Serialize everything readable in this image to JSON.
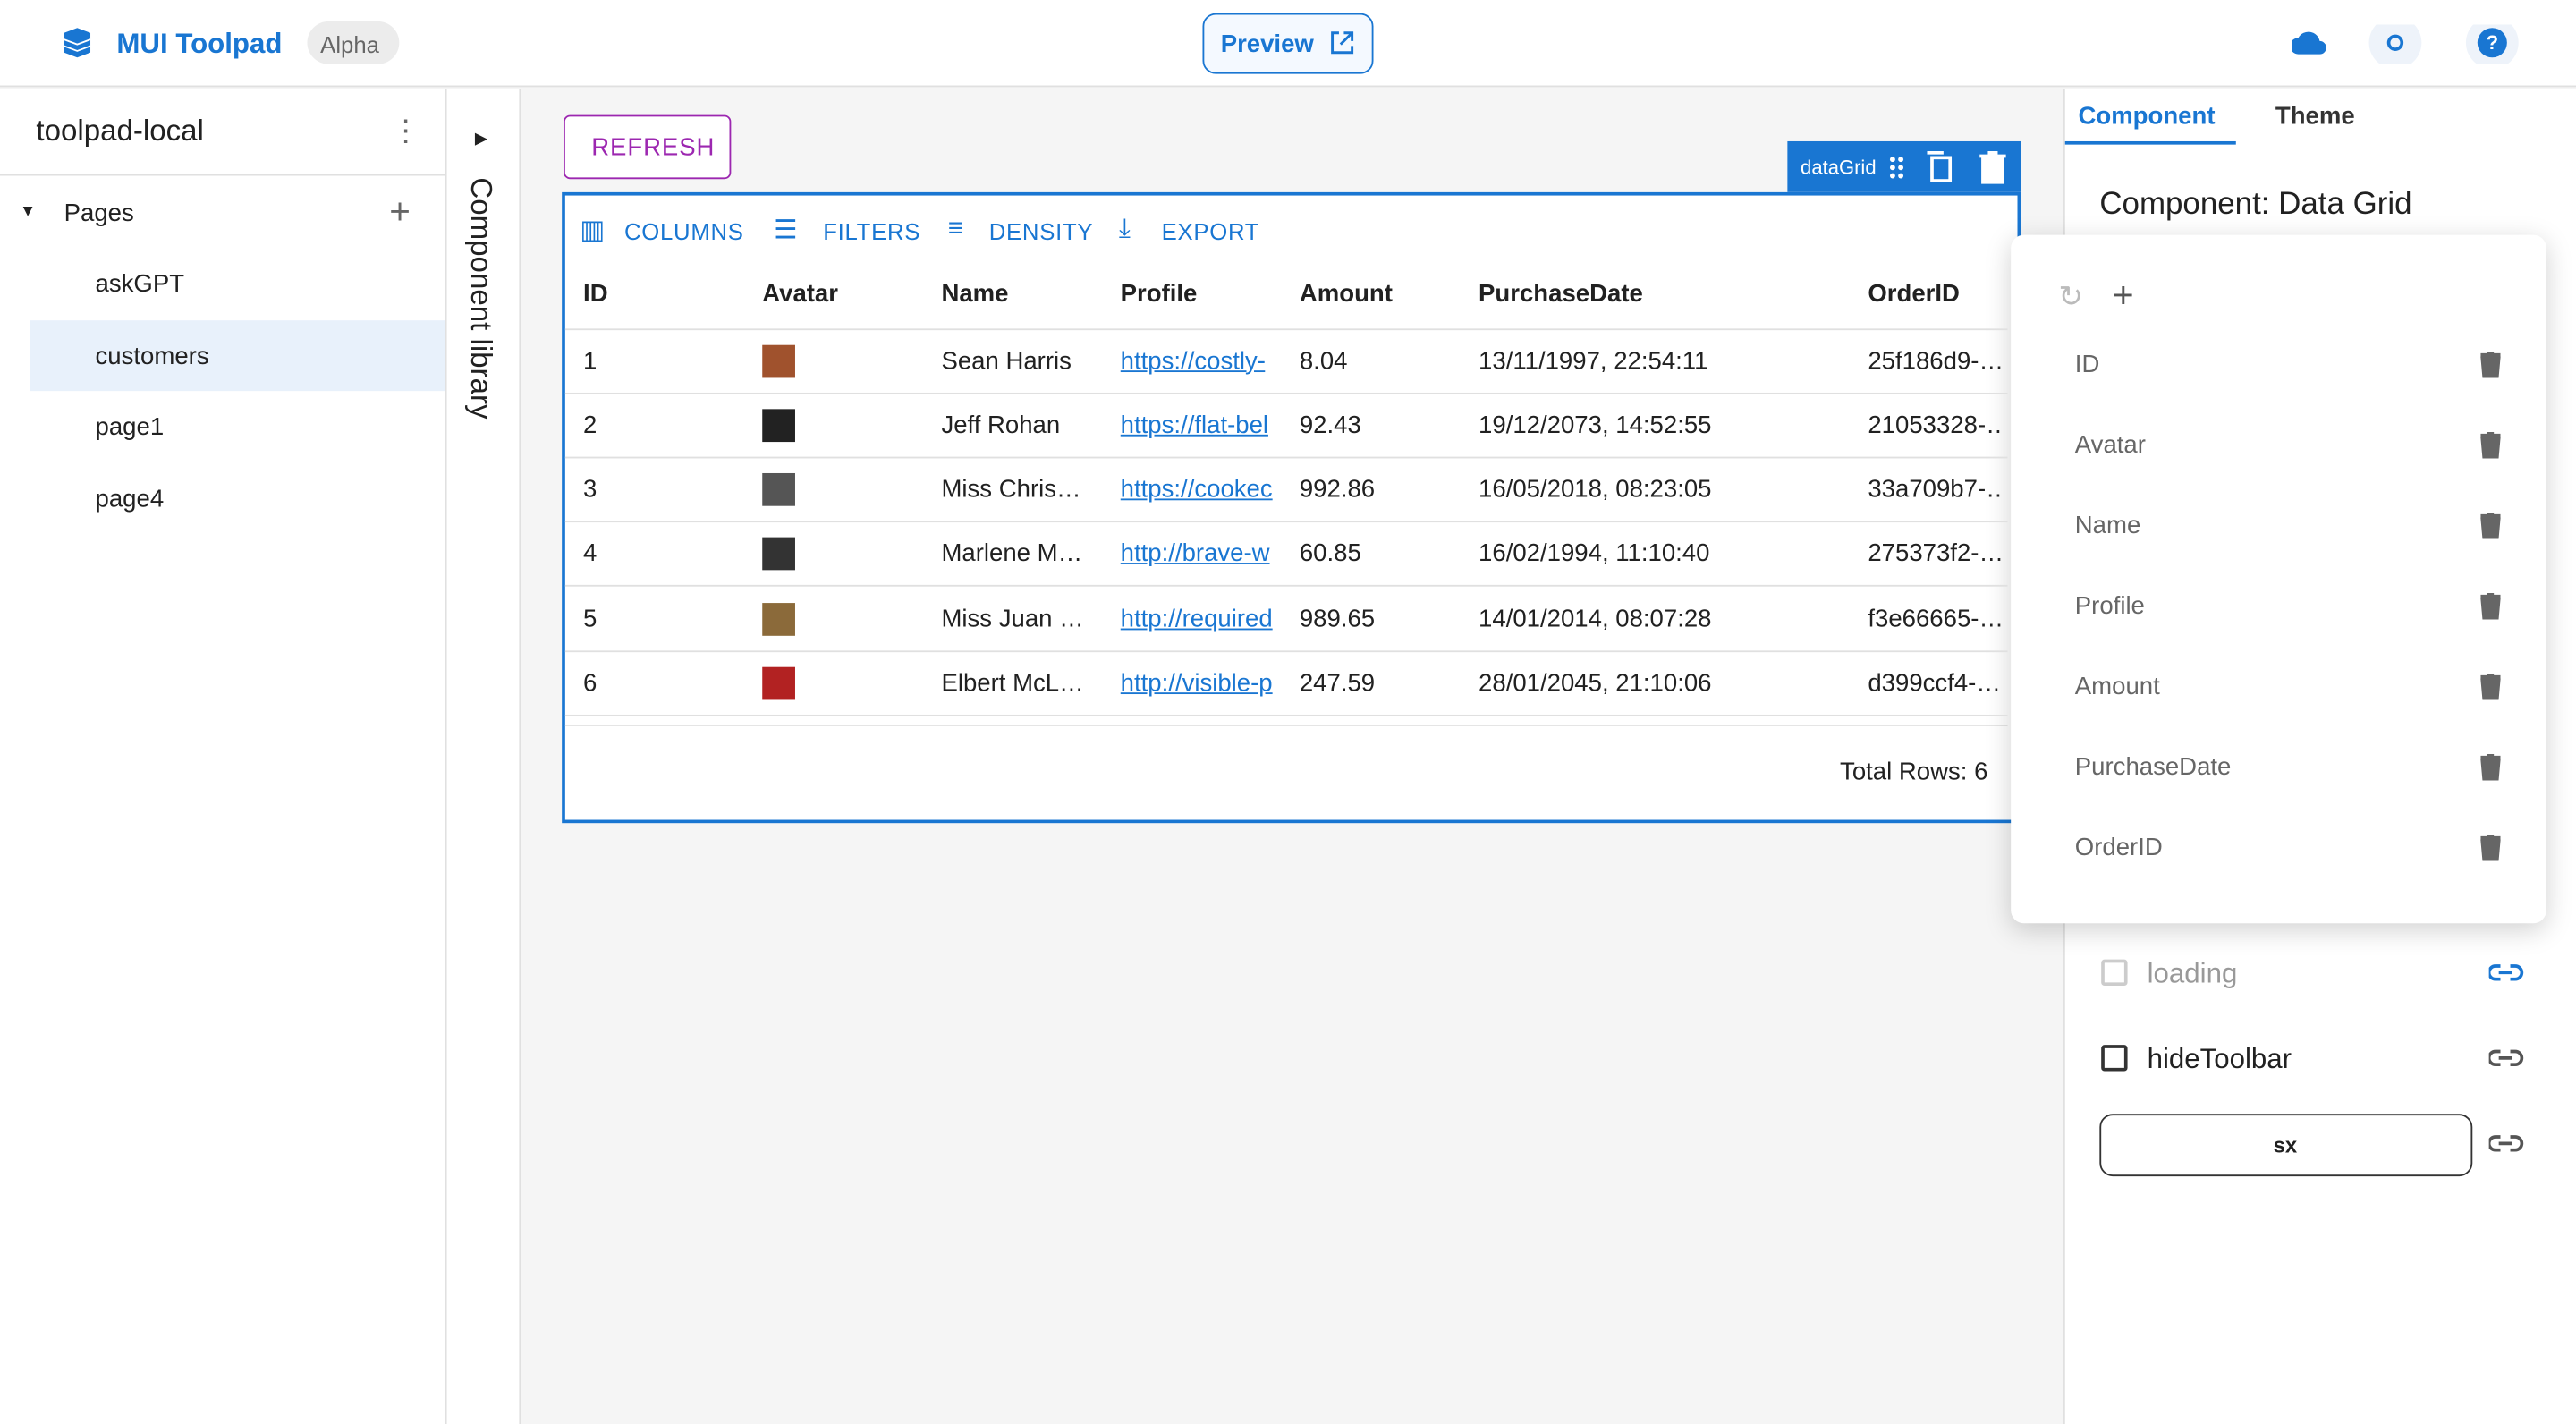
{
  "header": {
    "brand": "MUI Toolpad",
    "badge": "Alpha",
    "preview": "Preview"
  },
  "sidebar": {
    "project": "toolpad-local",
    "pages_label": "Pages",
    "pages": [
      "askGPT",
      "customers",
      "page1",
      "page4"
    ]
  },
  "component_library": "Component library",
  "canvas": {
    "refresh": "REFRESH",
    "grid_label": "dataGrid",
    "toolbar": [
      "COLUMNS",
      "FILTERS",
      "DENSITY",
      "EXPORT"
    ],
    "columns": [
      "ID",
      "Avatar",
      "Name",
      "Profile",
      "Amount",
      "PurchaseDate",
      "OrderID"
    ],
    "rows": [
      [
        "1",
        "Sean Harris",
        "https://costly-",
        "8.04",
        "13/11/1997, 22:54:11",
        "25f186d9-…"
      ],
      [
        "2",
        "Jeff Rohan",
        "https://flat-bel",
        "92.43",
        "19/12/2073, 14:52:55",
        "21053328-…"
      ],
      [
        "3",
        "Miss Chris…",
        "https://cookec",
        "992.86",
        "16/05/2018, 08:23:05",
        "33a709b7-…"
      ],
      [
        "4",
        "Marlene M…",
        "http://brave-w",
        "60.85",
        "16/02/1994, 11:10:40",
        "275373f2-…"
      ],
      [
        "5",
        "Miss Juan …",
        "http://required",
        "989.65",
        "14/01/2014, 08:07:28",
        "f3e66665-…"
      ],
      [
        "6",
        "Elbert McL…",
        "http://visible-p",
        "247.59",
        "28/01/2045, 21:10:06",
        "d399ccf4-…"
      ]
    ],
    "footer": "Total Rows: 6"
  },
  "panel": {
    "tabs": [
      "Component",
      "Theme"
    ],
    "heading": "Component: Data Grid",
    "columns": [
      "ID",
      "Avatar",
      "Name",
      "Profile",
      "Amount",
      "PurchaseDate",
      "OrderID"
    ],
    "loading": "loading",
    "hide_toolbar": "hideToolbar",
    "sx": "sx"
  }
}
